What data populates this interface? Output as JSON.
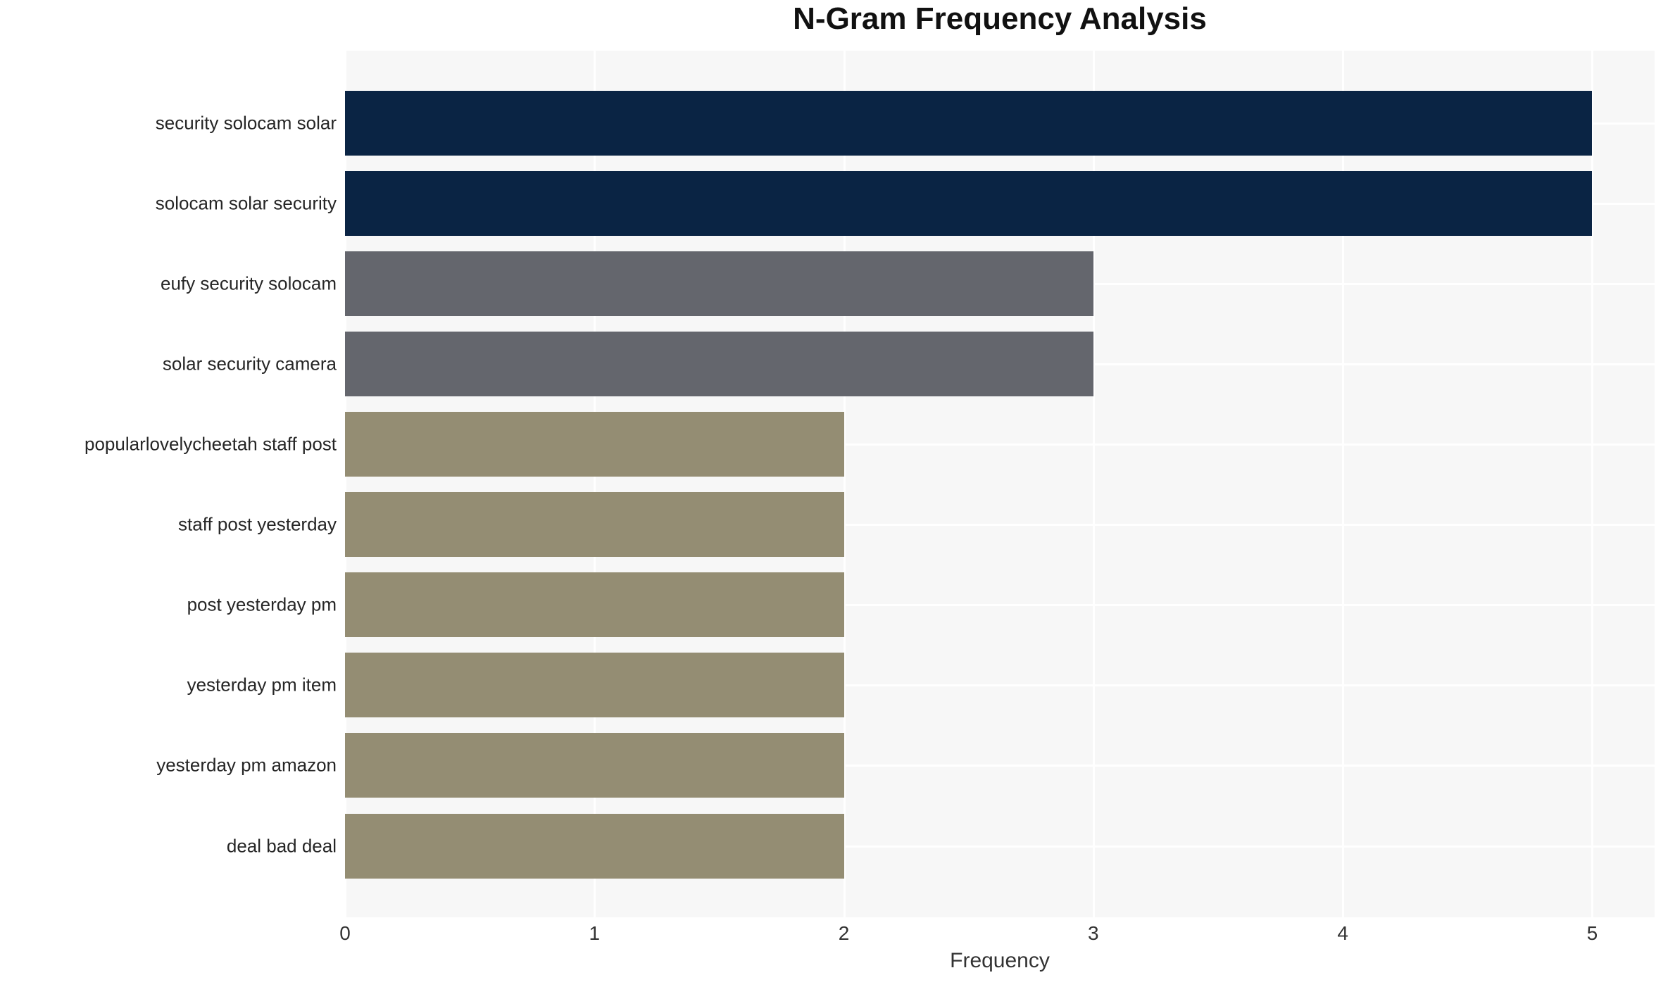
{
  "chart_data": {
    "type": "bar",
    "orientation": "horizontal",
    "title": "N-Gram Frequency Analysis",
    "xlabel": "Frequency",
    "ylabel": "",
    "categories": [
      "security solocam solar",
      "solocam solar security",
      "eufy security solocam",
      "solar security camera",
      "popularlovelycheetah staff post",
      "staff post yesterday",
      "post yesterday pm",
      "yesterday pm item",
      "yesterday pm amazon",
      "deal bad deal"
    ],
    "values": [
      5,
      5,
      3,
      3,
      2,
      2,
      2,
      2,
      2,
      2
    ],
    "bar_colors": [
      "#0a2444",
      "#0a2444",
      "#64666d",
      "#64666d",
      "#948d73",
      "#948d73",
      "#948d73",
      "#948d73",
      "#948d73",
      "#948d73"
    ],
    "xticks": [
      "0",
      "1",
      "2",
      "3",
      "4",
      "5"
    ],
    "xlim": [
      0,
      5.25
    ],
    "grid": true,
    "legend": false,
    "plot_bg_color": "#f7f7f7",
    "grid_color": "#ffffff",
    "label_color": "#262626",
    "tick_color": "#333333"
  }
}
